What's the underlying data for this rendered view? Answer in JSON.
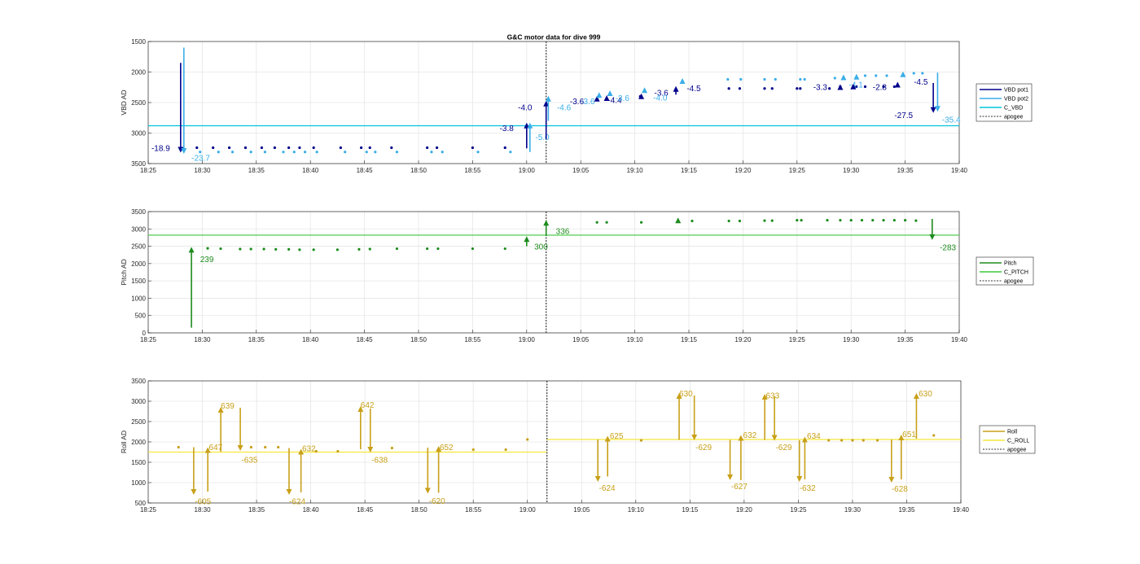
{
  "title": "G&C motor data for dive 999",
  "x_ticks": [
    "18:25",
    "18:30",
    "18:35",
    "18:40",
    "18:45",
    "18:50",
    "18:55",
    "19:00",
    "19:05",
    "19:10",
    "19:15",
    "19:20",
    "19:25",
    "19:30",
    "19:35",
    "19:40"
  ],
  "colors": {
    "vbd_pot1": "#00008b",
    "vbd_pot2": "#3aaee8",
    "c_vbd": "#00c5dc",
    "pitch": "#1e8c1e",
    "c_pitch": "#3cc83c",
    "roll": "#c8a019",
    "c_roll": "#f5e63c",
    "apogee": "#555555"
  },
  "chart_data": [
    {
      "type": "scatter",
      "ylabel": "VBD AD",
      "ylim": [
        1500,
        3500
      ],
      "y_reversed": true,
      "yticks": [
        1500,
        2000,
        2500,
        3000,
        3500
      ],
      "xlim": [
        "18:25",
        "19:40"
      ],
      "grid": true,
      "legend": [
        "VBD pot1",
        "VBD pot2",
        "C_VBD",
        "apogee"
      ],
      "legend_position": "right",
      "apogee": "19:01.8",
      "c_vbd": 2880,
      "pot1_points": [
        [
          "18:29.5",
          3240
        ],
        [
          "18:31",
          3240
        ],
        [
          "18:32.5",
          3240
        ],
        [
          "18:34",
          3240
        ],
        [
          "18:35.5",
          3240
        ],
        [
          "18:36.7",
          3240
        ],
        [
          "18:38",
          3240
        ],
        [
          "18:39",
          3240
        ],
        [
          "18:40.3",
          3240
        ],
        [
          "18:42.8",
          3240
        ],
        [
          "18:44.7",
          3240
        ],
        [
          "18:45.5",
          3240
        ],
        [
          "18:47.5",
          3240
        ],
        [
          "18:50.8",
          3240
        ],
        [
          "18:51.7",
          3240
        ],
        [
          "18:55",
          3240
        ],
        [
          "18:58",
          3240
        ],
        [
          "19:06.5",
          2450
        ],
        [
          "19:10.5",
          2400
        ],
        [
          "19:18.7",
          2270
        ],
        [
          "19:19.7",
          2270
        ],
        [
          "19:22",
          2270
        ],
        [
          "19:22.7",
          2270
        ],
        [
          "19:25",
          2270
        ],
        [
          "19:25.3",
          2270
        ],
        [
          "19:28",
          2270
        ],
        [
          "19:29",
          2240
        ],
        [
          "19:30.5",
          2240
        ],
        [
          "19:31.3",
          2240
        ],
        [
          "19:33",
          2240
        ],
        [
          "19:34",
          2240
        ]
      ],
      "pot2_points": [
        [
          "18:29.8",
          3310
        ],
        [
          "18:31.5",
          3310
        ],
        [
          "18:32.8",
          3310
        ],
        [
          "18:34.5",
          3310
        ],
        [
          "18:35.8",
          3310
        ],
        [
          "18:37.5",
          3310
        ],
        [
          "18:38.5",
          3310
        ],
        [
          "18:39.5",
          3310
        ],
        [
          "18:40.6",
          3310
        ],
        [
          "18:43.2",
          3310
        ],
        [
          "18:45.2",
          3310
        ],
        [
          "18:46",
          3310
        ],
        [
          "18:48",
          3310
        ],
        [
          "18:51.2",
          3310
        ],
        [
          "18:52.2",
          3310
        ],
        [
          "18:55.5",
          3310
        ],
        [
          "18:58.5",
          3310
        ],
        [
          "19:18.6",
          2120
        ],
        [
          "19:19.8",
          2120
        ],
        [
          "19:22",
          2120
        ],
        [
          "19:23",
          2120
        ],
        [
          "19:25.3",
          2120
        ],
        [
          "19:25.7",
          2120
        ],
        [
          "19:28.5",
          2100
        ],
        [
          "19:31.3",
          2060
        ],
        [
          "19:32.3",
          2060
        ],
        [
          "19:33.3",
          2060
        ],
        [
          "19:35.8",
          2020
        ],
        [
          "19:36.6",
          2020
        ]
      ],
      "arrows": [
        {
          "series": "pot1",
          "x": "18:28.0",
          "from": 1850,
          "to": 3320,
          "label": "-18.9",
          "lx": "18:25.3",
          "ly": 3240
        },
        {
          "series": "pot2",
          "x": "18:28.3",
          "from": 1600,
          "to": 3340,
          "label": "-23.7",
          "lx": "18:29.0",
          "ly": 3400
        },
        {
          "series": "pot1",
          "x": "19:00.0",
          "from": 3250,
          "to": 2830,
          "label": "-3.8",
          "lx": "18:57.5",
          "ly": 2910
        },
        {
          "series": "pot2",
          "x": "19:00.3",
          "from": 3310,
          "to": 2830,
          "label": "-5.0",
          "lx": "19:00.8",
          "ly": 3060
        },
        {
          "series": "pot1",
          "x": "19:01.8",
          "from": 3100,
          "to": 2470,
          "label": "-4.0",
          "lx": "18:59.2",
          "ly": 2570
        },
        {
          "series": "pot2",
          "x": "19:02.0",
          "from": 2800,
          "to": 2390,
          "label": "-4.6",
          "lx": "19:02.8",
          "ly": 2570
        },
        {
          "series": "pot1",
          "x": "19:06.5",
          "from": 2470,
          "to": 2390,
          "label": "-3.6",
          "lx": "19:04.0",
          "ly": 2470
        },
        {
          "series": "pot2",
          "x": "19:06.7",
          "from": 2400,
          "to": 2330,
          "label": "-3.6",
          "lx": "19:05.0",
          "ly": 2470
        },
        {
          "series": "pot1",
          "x": "19:07.4",
          "from": 2460,
          "to": 2380,
          "label": "-4.4",
          "lx": "19:07.5",
          "ly": 2450
        },
        {
          "series": "pot2",
          "x": "19:07.7",
          "from": 2380,
          "to": 2300,
          "label": "-3.6",
          "lx": "19:08.2",
          "ly": 2420
        },
        {
          "series": "pot1",
          "x": "19:10.6",
          "from": 2430,
          "to": 2350,
          "label": "-3.6",
          "lx": "19:11.8",
          "ly": 2330
        },
        {
          "series": "pot2",
          "x": "19:10.9",
          "from": 2330,
          "to": 2250,
          "label": "-4.0",
          "lx": "19:11.7",
          "ly": 2410
        },
        {
          "series": "pot1",
          "x": "19:13.8",
          "from": 2370,
          "to": 2230,
          "label": "-4.5",
          "lx": "19:14.8",
          "ly": 2260
        },
        {
          "series": "pot2",
          "x": "19:14.4",
          "from": 2160,
          "to": 2100,
          "label": "",
          "lx": "19:14.4",
          "ly": 2100
        },
        {
          "series": "pot1",
          "x": "19:29.0",
          "from": 2260,
          "to": 2200,
          "label": "-3.3",
          "lx": "19:26.5",
          "ly": 2240
        },
        {
          "series": "pot2",
          "x": "19:29.3",
          "from": 2100,
          "to": 2040,
          "label": "-4.1",
          "lx": "19:29.8",
          "ly": 2200
        },
        {
          "series": "pot1",
          "x": "19:30.2",
          "from": 2250,
          "to": 2190,
          "label": "-2.8",
          "lx": "19:32.0",
          "ly": 2240
        },
        {
          "series": "pot2",
          "x": "19:30.5",
          "from": 2090,
          "to": 2030,
          "label": "",
          "lx": "19:30.5",
          "ly": 2030
        },
        {
          "series": "pot1",
          "x": "19:34.3",
          "from": 2230,
          "to": 2160,
          "label": "-4.5",
          "lx": "19:35.8",
          "ly": 2150
        },
        {
          "series": "pot2",
          "x": "19:34.8",
          "from": 2050,
          "to": 1990,
          "label": "",
          "lx": "19:34.8",
          "ly": 1990
        },
        {
          "series": "pot1",
          "x": "19:37.6",
          "from": 2180,
          "to": 2670,
          "label": "-27.5",
          "lx": "19:34.0",
          "ly": 2700
        },
        {
          "series": "pot2",
          "x": "19:38.0",
          "from": 2010,
          "to": 2650,
          "label": "-35.4",
          "lx": "19:38.4",
          "ly": 2770
        }
      ]
    },
    {
      "type": "scatter",
      "ylabel": "Pitch AD",
      "ylim": [
        0,
        3500
      ],
      "yticks": [
        0,
        500,
        1000,
        1500,
        2000,
        2500,
        3000,
        3500
      ],
      "xlim": [
        "18:25",
        "19:40"
      ],
      "grid": true,
      "legend": [
        "Pitch",
        "C_PITCH",
        "apogee"
      ],
      "legend_position": "right",
      "apogee": "19:01.8",
      "c_pitch": 2820,
      "points": [
        [
          "18:30.5",
          2440
        ],
        [
          "18:31.7",
          2430
        ],
        [
          "18:33.5",
          2420
        ],
        [
          "18:34.5",
          2420
        ],
        [
          "18:35.7",
          2420
        ],
        [
          "18:36.8",
          2410
        ],
        [
          "18:38",
          2410
        ],
        [
          "18:39",
          2400
        ],
        [
          "18:40.3",
          2400
        ],
        [
          "18:42.5",
          2400
        ],
        [
          "18:44.5",
          2410
        ],
        [
          "18:45.5",
          2420
        ],
        [
          "18:48",
          2430
        ],
        [
          "18:50.8",
          2430
        ],
        [
          "18:51.8",
          2430
        ],
        [
          "18:55",
          2430
        ],
        [
          "18:58",
          2430
        ],
        [
          "19:06.5",
          3190
        ],
        [
          "19:07.4",
          3190
        ],
        [
          "19:10.6",
          3190
        ],
        [
          "19:15.3",
          3230
        ],
        [
          "19:18.7",
          3230
        ],
        [
          "19:19.7",
          3230
        ],
        [
          "19:22",
          3240
        ],
        [
          "19:22.7",
          3240
        ],
        [
          "19:25",
          3250
        ],
        [
          "19:25.4",
          3250
        ],
        [
          "19:27.8",
          3250
        ],
        [
          "19:29",
          3250
        ],
        [
          "19:30",
          3250
        ],
        [
          "19:31",
          3250
        ],
        [
          "19:32",
          3250
        ],
        [
          "19:33",
          3250
        ],
        [
          "19:34",
          3250
        ],
        [
          "19:35",
          3250
        ],
        [
          "19:36",
          3240
        ]
      ],
      "arrows": [
        {
          "x": "18:29.0",
          "from": 150,
          "to": 2480,
          "label": "239",
          "lx": "18:29.8",
          "ly": 2140
        },
        {
          "x": "19:00.0",
          "from": 2500,
          "to": 2790,
          "label": "300",
          "lx": "19:00.7",
          "ly": 2500
        },
        {
          "x": "19:01.8",
          "from": 2800,
          "to": 3260,
          "label": "336",
          "lx": "19:02.7",
          "ly": 2950
        },
        {
          "x": "19:14.0",
          "from": 3230,
          "to": 3330,
          "label": "",
          "lx": "19:14.0",
          "ly": 3330
        },
        {
          "x": "19:37.5",
          "from": 3290,
          "to": 2680,
          "label": "-283",
          "lx": "19:38.2",
          "ly": 2480
        }
      ]
    },
    {
      "type": "scatter",
      "ylabel": "Roll AD",
      "ylim": [
        500,
        3500
      ],
      "yticks": [
        500,
        1000,
        1500,
        2000,
        2500,
        3000,
        3500
      ],
      "xlim": [
        "18:25",
        "19:40"
      ],
      "grid": true,
      "legend": [
        "Roll",
        "C_ROLL",
        "apogee"
      ],
      "legend_position": "right",
      "apogee": "19:01.8",
      "c_roll": [
        1750,
        2060
      ],
      "points": [
        [
          "18:27.8",
          1870
        ],
        [
          "18:34.5",
          1870
        ],
        [
          "18:35.8",
          1870
        ],
        [
          "18:37",
          1870
        ],
        [
          "18:40.5",
          1770
        ],
        [
          "18:42.5",
          1770
        ],
        [
          "18:47.5",
          1850
        ],
        [
          "18:55",
          1810
        ],
        [
          "18:58",
          1810
        ],
        [
          "19:00",
          2060
        ],
        [
          "19:10.5",
          2040
        ],
        [
          "19:27.8",
          2040
        ],
        [
          "19:29",
          2040
        ],
        [
          "19:30",
          2040
        ],
        [
          "19:31",
          2040
        ],
        [
          "19:32.3",
          2040
        ],
        [
          "19:37.5",
          2160
        ]
      ],
      "arrows": [
        {
          "x": "18:29.2",
          "from": 1870,
          "to": 700,
          "label": "-605",
          "lx": "18:29.3",
          "ly": 550
        },
        {
          "x": "18:30.5",
          "from": 780,
          "to": 1870,
          "label": "647",
          "lx": "18:30.6",
          "ly": 1880
        },
        {
          "x": "18:31.7",
          "from": 1760,
          "to": 2860,
          "label": "639",
          "lx": "18:31.7",
          "ly": 2900
        },
        {
          "x": "18:33.5",
          "from": 2840,
          "to": 1780,
          "label": "-635",
          "lx": "18:33.6",
          "ly": 1570
        },
        {
          "x": "18:38.0",
          "from": 1850,
          "to": 700,
          "label": "-624",
          "lx": "18:38.0",
          "ly": 550
        },
        {
          "x": "18:39.1",
          "from": 760,
          "to": 1830,
          "label": "632",
          "lx": "18:39.2",
          "ly": 1850
        },
        {
          "x": "18:44.6",
          "from": 1820,
          "to": 2880,
          "label": "642",
          "lx": "18:44.6",
          "ly": 2920
        },
        {
          "x": "18:45.5",
          "from": 2820,
          "to": 1740,
          "label": "-638",
          "lx": "18:45.6",
          "ly": 1570
        },
        {
          "x": "18:50.8",
          "from": 1860,
          "to": 730,
          "label": "-620",
          "lx": "18:50.9",
          "ly": 560
        },
        {
          "x": "18:51.8",
          "from": 750,
          "to": 1900,
          "label": "652",
          "lx": "18:51.9",
          "ly": 1880
        },
        {
          "x": "19:06.5",
          "from": 2060,
          "to": 1020,
          "label": "-624",
          "lx": "19:06.6",
          "ly": 880
        },
        {
          "x": "19:07.4",
          "from": 1150,
          "to": 2150,
          "label": "625",
          "lx": "19:07.6",
          "ly": 2160
        },
        {
          "x": "19:14.0",
          "from": 2050,
          "to": 3200,
          "label": "630",
          "lx": "19:14.0",
          "ly": 3200
        },
        {
          "x": "19:15.4",
          "from": 3140,
          "to": 2040,
          "label": "-629",
          "lx": "19:15.5",
          "ly": 1880
        },
        {
          "x": "19:18.7",
          "fromm": 2050,
          "from": 2050,
          "to": 1060,
          "label": "-627",
          "lx": "19:18.8",
          "ly": 920
        },
        {
          "x": "19:19.7",
          "from": 1060,
          "to": 2170,
          "label": "632",
          "lx": "19:19.9",
          "ly": 2180
        },
        {
          "x": "19:21.9",
          "from": 2050,
          "to": 3180,
          "label": "633",
          "lx": "19:22.0",
          "ly": 3150
        },
        {
          "x": "19:22.8",
          "from": 3120,
          "to": 2030,
          "label": "-629",
          "lx": "19:22.9",
          "ly": 1880
        },
        {
          "x": "19:25.1",
          "from": 2040,
          "to": 1020,
          "label": "-632",
          "lx": "19:25.1",
          "ly": 880
        },
        {
          "x": "19:25.6",
          "from": 1080,
          "to": 2130,
          "label": "634",
          "lx": "19:25.8",
          "ly": 2160
        },
        {
          "x": "19:33.6",
          "from": 2060,
          "to": 1000,
          "label": "-628",
          "lx": "19:33.6",
          "ly": 860
        },
        {
          "x": "19:34.5",
          "from": 1080,
          "to": 2180,
          "label": "651",
          "lx": "19:34.6",
          "ly": 2200
        },
        {
          "x": "19:35.9",
          "from": 2080,
          "to": 3200,
          "label": "630",
          "lx": "19:36.1",
          "ly": 3200
        }
      ]
    }
  ]
}
